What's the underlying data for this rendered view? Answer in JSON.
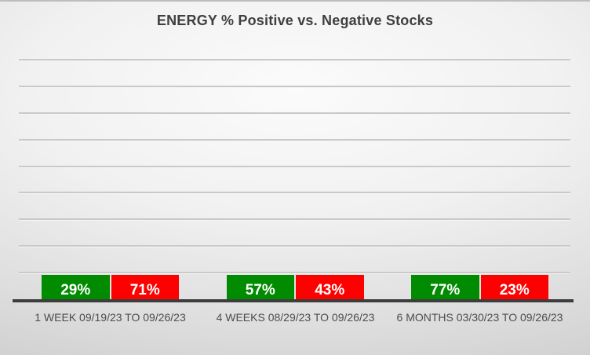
{
  "chart_data": {
    "type": "bar",
    "title": "ENERGY % Positive vs. Negative Stocks",
    "categories": [
      "1 WEEK 09/19/23 TO 09/26/23",
      "4 WEEKS 08/29/23 TO 09/26/23",
      "6 MONTHS 03/30/23 TO 09/26/23"
    ],
    "series": [
      {
        "name": "Positive",
        "color": "#008b00",
        "values": [
          29,
          57,
          77
        ],
        "labels": [
          "29%",
          "57%",
          "77%"
        ]
      },
      {
        "name": "Negative",
        "color": "#fd0000",
        "values": [
          71,
          43,
          23
        ],
        "labels": [
          "71%",
          "43%",
          "23%"
        ]
      }
    ],
    "ylim": [
      0,
      90
    ],
    "grid_step": 10,
    "grid": true,
    "legend": false,
    "data_label_color": "#ffffff",
    "axis_color": "#3d3d3d",
    "background_color": "#e0e0e0"
  }
}
